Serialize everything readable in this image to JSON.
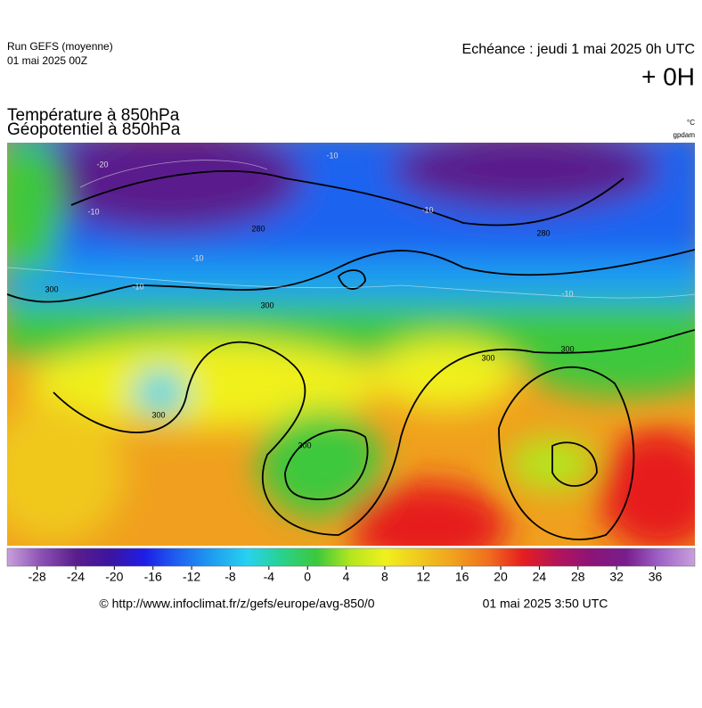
{
  "header": {
    "run": "Run GEFS (moyenne)",
    "run_date": "01 mai 2025 00Z",
    "echeance": "Echéance : jeudi 1 mai 2025 0h UTC",
    "lead": "+ 0H"
  },
  "titles": {
    "line1": "Température à 850hPa",
    "line2": "Géopotentiel à 850hPa",
    "unit1": "°C",
    "unit2": "gpdam"
  },
  "contour_labels": [
    "-20",
    "-10",
    "-10",
    "-10",
    "-10",
    "-10",
    "-10",
    "280",
    "280",
    "300",
    "300",
    "300",
    "300",
    "300",
    "300"
  ],
  "colorbar": {
    "lim": [
      -31.1,
      40.1
    ],
    "ticks": [
      -28,
      -24,
      -20,
      -16,
      -12,
      -8,
      -4,
      0,
      4,
      8,
      12,
      16,
      20,
      24,
      28,
      32,
      36
    ],
    "colors": [
      "#c8a0dc",
      "#8c50b4",
      "#5a1e8c",
      "#3c14a0",
      "#1e1ee6",
      "#1e64f0",
      "#1ea0f0",
      "#28d2f0",
      "#28d28c",
      "#3cc83c",
      "#b4e61e",
      "#f0f01e",
      "#f0c81e",
      "#f0a01e",
      "#f06e1e",
      "#e61e1e",
      "#b4145a",
      "#8c1478",
      "#781e8c",
      "#a064c8",
      "#c8a0dc"
    ]
  },
  "footer": {
    "url": "© http://www.infoclimat.fr/z/gefs/europe/avg-850/0",
    "time": "01 mai 2025  3:50 UTC"
  }
}
